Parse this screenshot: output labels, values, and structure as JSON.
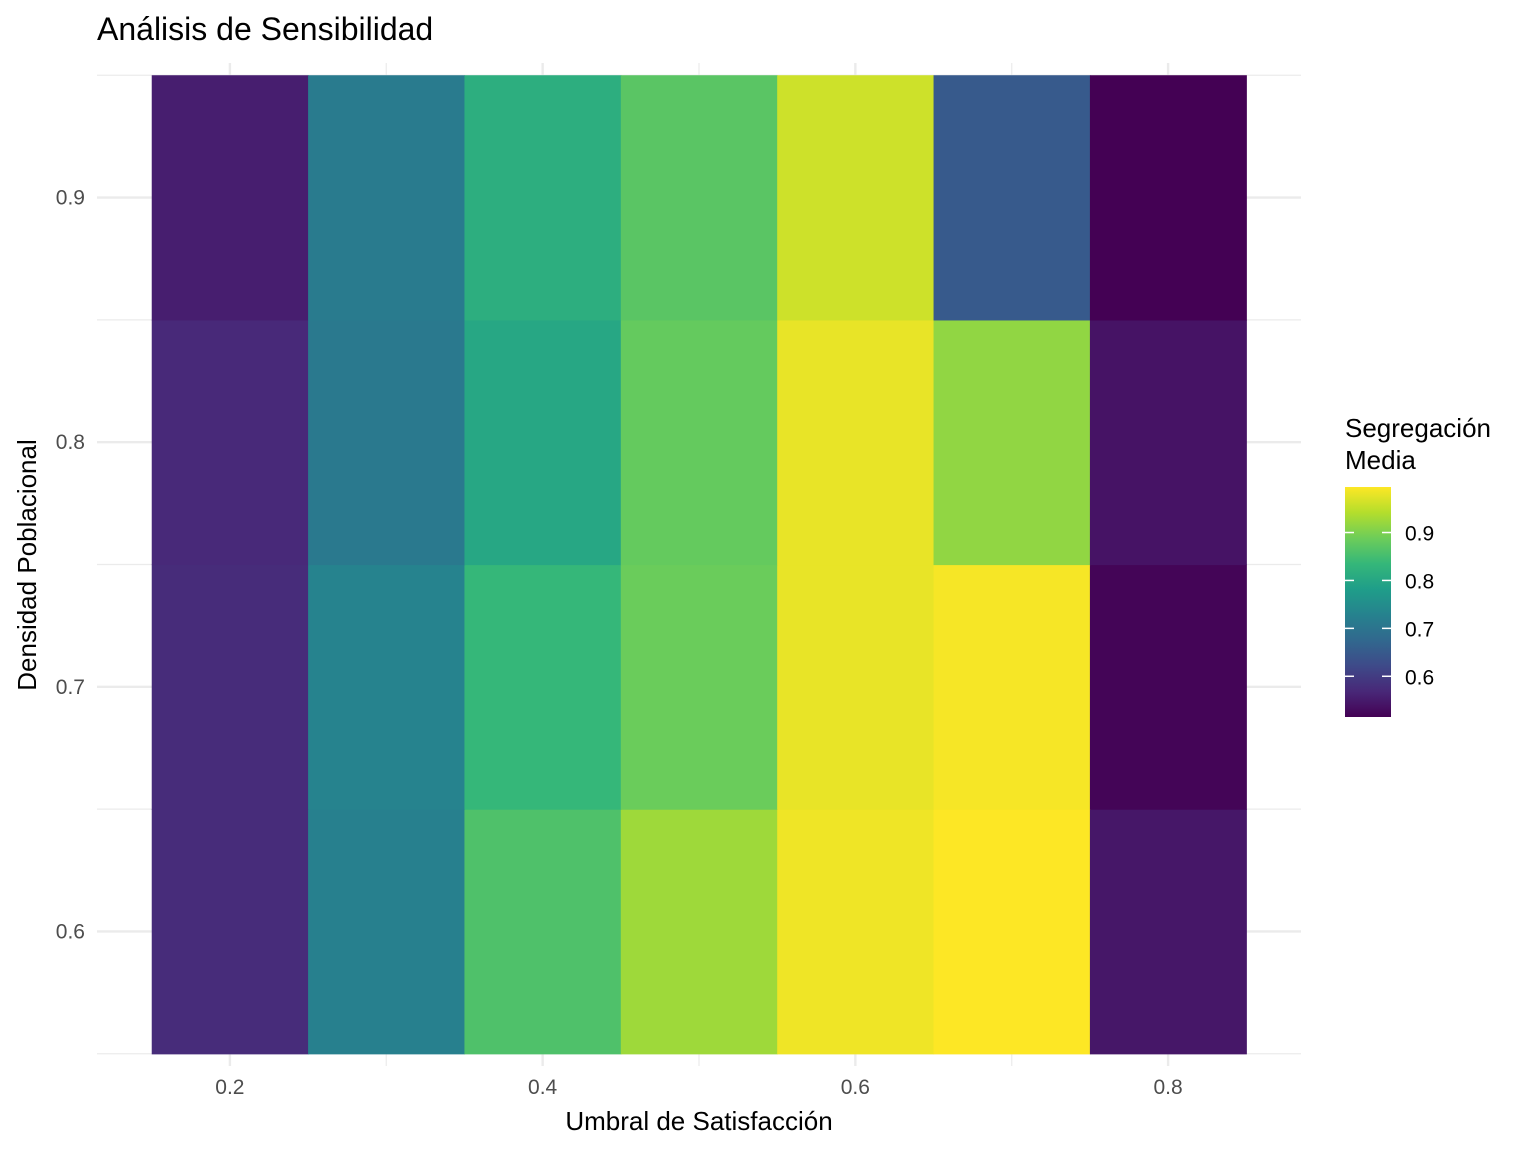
{
  "chart_data": {
    "type": "heatmap",
    "title": "Análisis de Sensibilidad",
    "xlabel": "Umbral de Satisfacción",
    "ylabel": "Densidad Poblacional",
    "x": [
      0.2,
      0.3,
      0.4,
      0.5,
      0.6,
      0.7,
      0.8
    ],
    "y": [
      0.6,
      0.7,
      0.8,
      0.9
    ],
    "xlim": [
      0.115,
      0.885
    ],
    "ylim": [
      0.545,
      0.955
    ],
    "x_ticks": [
      0.2,
      0.4,
      0.6,
      0.8
    ],
    "x_tick_labels": [
      "0.2",
      "0.4",
      "0.6",
      "0.8"
    ],
    "y_ticks": [
      0.6,
      0.7,
      0.8,
      0.9
    ],
    "y_tick_labels": [
      "0.6",
      "0.7",
      "0.8",
      "0.9"
    ],
    "values": [
      [
        0.575,
        0.725,
        0.86,
        0.925,
        0.985,
        0.995,
        0.545
      ],
      [
        0.575,
        0.73,
        0.835,
        0.885,
        0.98,
        0.99,
        0.52
      ],
      [
        0.57,
        0.71,
        0.8,
        0.88,
        0.98,
        0.915,
        0.54
      ],
      [
        0.555,
        0.715,
        0.815,
        0.87,
        0.96,
        0.65,
        0.515
      ]
    ],
    "colorbar": {
      "title_lines": [
        "Segregación",
        "Media"
      ],
      "min": 0.515,
      "max": 0.995,
      "ticks": [
        0.6,
        0.7,
        0.8,
        0.9
      ],
      "tick_labels": [
        "0.6",
        "0.7",
        "0.8",
        "0.9"
      ],
      "palette": [
        "#440154",
        "#482878",
        "#3E4A89",
        "#31688E",
        "#26828E",
        "#1F9E89",
        "#35B779",
        "#6DCD59",
        "#B4DE2C",
        "#FDE725"
      ]
    },
    "grid": true,
    "legend_position": "right"
  },
  "colors": {
    "background": "#ffffff",
    "grid": "#ebebeb",
    "axis_text": "#4d4d4d",
    "text": "#000000"
  }
}
